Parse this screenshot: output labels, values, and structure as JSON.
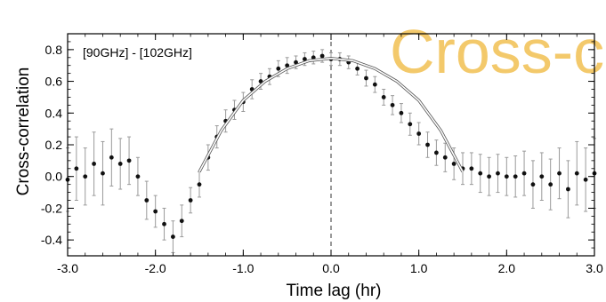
{
  "chart_data": {
    "type": "scatter",
    "title": "",
    "annotation": "[90GHz] - [102GHz]",
    "overlay_text": "Cross-c",
    "xlabel": "Time lag (hr)",
    "ylabel": "Cross-correlation",
    "xlim": [
      -3.0,
      3.0
    ],
    "ylim": [
      -0.5,
      0.9
    ],
    "x_ticks": [
      "-3.0",
      "-2.0",
      "-1.0",
      "0.0",
      "1.0",
      "2.0",
      "3.0"
    ],
    "y_ticks": [
      "-0.4",
      "-0.2",
      "0.0",
      "0.2",
      "0.4",
      "0.6",
      "0.8"
    ],
    "vline_x": 0.0,
    "grid": false,
    "colors": {
      "points": "#111111",
      "errorbars": "#9a9a9a",
      "fit": "#ffffff",
      "overlay": "#f3c96b"
    },
    "series": [
      {
        "x": [
          -3.0,
          -2.9,
          -2.8,
          -2.7,
          -2.6,
          -2.5,
          -2.4,
          -2.3,
          -2.2,
          -2.1,
          -2.0,
          -1.9,
          -1.8,
          -1.7,
          -1.6,
          -1.5,
          -1.4,
          -1.3,
          -1.2,
          -1.1,
          -1.0,
          -0.9,
          -0.8,
          -0.7,
          -0.6,
          -0.5,
          -0.4,
          -0.3,
          -0.2,
          -0.1,
          0.0,
          0.1,
          0.2,
          0.3,
          0.4,
          0.5,
          0.6,
          0.7,
          0.8,
          0.9,
          1.0,
          1.1,
          1.2,
          1.3,
          1.4,
          1.5,
          1.6,
          1.7,
          1.8,
          1.9,
          2.0,
          2.1,
          2.2,
          2.3,
          2.4,
          2.5,
          2.6,
          2.7,
          2.8,
          2.9,
          3.0
        ],
        "y": [
          -0.02,
          0.05,
          0.0,
          0.08,
          0.02,
          0.12,
          0.08,
          0.1,
          0.0,
          -0.15,
          -0.22,
          -0.3,
          -0.38,
          -0.28,
          -0.15,
          -0.05,
          0.12,
          0.25,
          0.35,
          0.42,
          0.47,
          0.55,
          0.6,
          0.63,
          0.68,
          0.7,
          0.72,
          0.74,
          0.75,
          0.76,
          0.74,
          0.74,
          0.72,
          0.68,
          0.62,
          0.58,
          0.5,
          0.45,
          0.4,
          0.33,
          0.27,
          0.2,
          0.15,
          0.12,
          0.08,
          0.05,
          0.05,
          0.02,
          0.0,
          0.02,
          0.0,
          0.0,
          0.02,
          -0.05,
          0.0,
          -0.05,
          0.02,
          -0.08,
          0.02,
          -0.02,
          0.02
        ],
        "yerr": [
          0.2,
          0.2,
          0.18,
          0.2,
          0.2,
          0.18,
          0.16,
          0.15,
          0.12,
          0.12,
          0.1,
          0.1,
          0.1,
          0.1,
          0.08,
          0.08,
          0.08,
          0.07,
          0.07,
          0.06,
          0.06,
          0.06,
          0.05,
          0.05,
          0.05,
          0.05,
          0.04,
          0.04,
          0.04,
          0.04,
          0.04,
          0.04,
          0.04,
          0.04,
          0.05,
          0.05,
          0.05,
          0.06,
          0.06,
          0.07,
          0.07,
          0.08,
          0.08,
          0.09,
          0.1,
          0.1,
          0.1,
          0.12,
          0.12,
          0.12,
          0.12,
          0.13,
          0.14,
          0.15,
          0.15,
          0.16,
          0.16,
          0.18,
          0.2,
          0.2,
          0.22
        ]
      }
    ],
    "fit_curve": {
      "x": [
        -1.5,
        -1.25,
        -1.0,
        -0.75,
        -0.5,
        -0.25,
        0.0,
        0.25,
        0.5,
        0.75,
        1.0,
        1.25,
        1.5
      ],
      "y": [
        0.03,
        0.29,
        0.48,
        0.6,
        0.68,
        0.73,
        0.745,
        0.73,
        0.68,
        0.6,
        0.48,
        0.29,
        0.03
      ]
    }
  }
}
